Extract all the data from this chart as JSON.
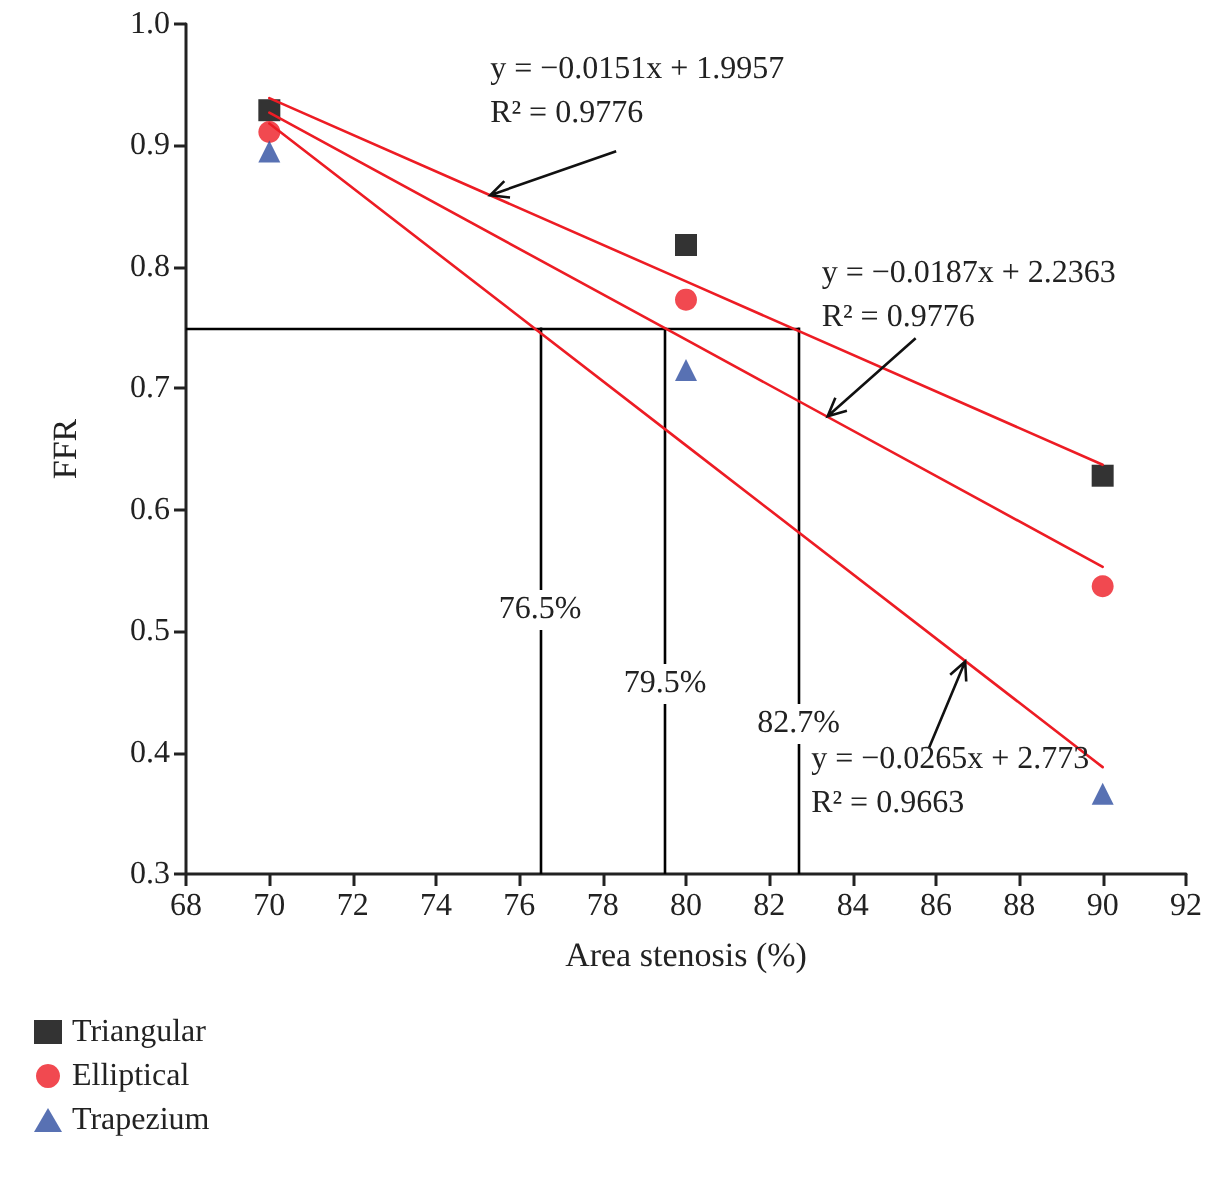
{
  "chart_data": {
    "type": "scatter",
    "xlabel": "Area stenosis (%)",
    "ylabel": "FFR",
    "x": [
      70,
      80,
      90
    ],
    "xlim": [
      68,
      92
    ],
    "xticks": [
      68,
      70,
      72,
      74,
      76,
      78,
      80,
      82,
      84,
      86,
      88,
      90,
      92
    ],
    "ylim": [
      0.3,
      1.0
    ],
    "yticks": [
      {
        "value": 0.3,
        "label": "0.3"
      },
      {
        "value": 0.4,
        "label": "0.4"
      },
      {
        "value": 0.5,
        "label": "0.5"
      },
      {
        "value": 0.6,
        "label": "0.6"
      },
      {
        "value": 0.7,
        "label": "0.7"
      },
      {
        "value": 0.8,
        "label": "0.8"
      },
      {
        "value": 0.9,
        "label": "0.9"
      },
      {
        "value": 1.0,
        "label": "1.0"
      }
    ],
    "series": [
      {
        "name": "Triangular",
        "color": "#000000",
        "marker": "square",
        "values": [
          0.929,
          0.818,
          0.628
        ]
      },
      {
        "name": "Elliptical",
        "color": "#ed1c24",
        "marker": "circle",
        "values": [
          0.911,
          0.773,
          0.537
        ]
      },
      {
        "name": "Trapezium",
        "color": "#2e4da0",
        "marker": "triangle",
        "values": [
          0.895,
          0.715,
          0.366
        ]
      },
      {
        "type": "line",
        "color": "#ed1c24",
        "marker": "none",
        "values": [
          0.939,
          0.788,
          0.637
        ]
      },
      {
        "type": "line",
        "color": "#ed1c24",
        "marker": "none",
        "values": [
          0.927,
          0.74,
          0.553
        ]
      },
      {
        "type": "line",
        "color": "#ed1c24",
        "marker": "none",
        "values": [
          0.918,
          0.653,
          0.388
        ]
      }
    ],
    "ref_lines": [
      {
        "axis": "y",
        "value": 0.75,
        "color": "#000000"
      },
      {
        "axis": "x",
        "value": 76.5,
        "label": "76.5%",
        "color": "#000000"
      },
      {
        "axis": "x",
        "value": 79.5,
        "label": "79.5%",
        "color": "#000000"
      },
      {
        "axis": "x",
        "value": 82.7,
        "label": "82.7%",
        "color": "#000000"
      }
    ],
    "annotations": [
      {
        "text": "y = −0.0151x + 1.9957\nR² = 0.9776",
        "x": 75.3,
        "y": 0.859
      },
      {
        "text": "y = −0.0187x + 2.2363\nR² = 0.9776",
        "x": 83.4,
        "y": 0.677
      },
      {
        "text": "y = −0.0265x + 2.773\nR² = 0.9663",
        "x": 86.7,
        "y": 0.475
      }
    ],
    "grid": false,
    "legend": "bottom left",
    "line_style": "solid"
  }
}
